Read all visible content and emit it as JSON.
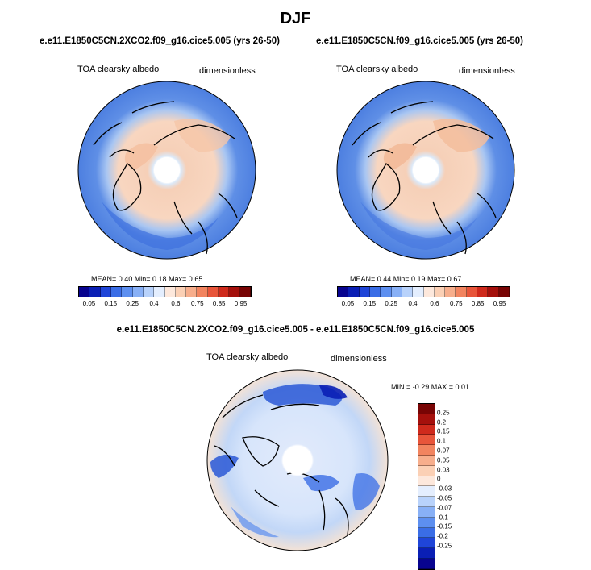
{
  "season_title": "DJF",
  "panels": [
    {
      "case": "e.e11.E1850C5CN.2XCO2.f09_g16.cice5.005 (yrs 26-50)",
      "variable": "TOA clearsky albedo",
      "units": "dimensionless",
      "stats": "MEAN=  0.40  Min=   0.18  Max=  0.65"
    },
    {
      "case": "e.e11.E1850C5CN.f09_g16.cice5.005 (yrs 26-50)",
      "variable": "TOA clearsky albedo",
      "units": "dimensionless",
      "stats": "MEAN=  0.44  Min=   0.19  Max=  0.67"
    }
  ],
  "diff_panel": {
    "title": "e.e11.E1850C5CN.2XCO2.f09_g16.cice5.005 - e.e11.E1850C5CN.f09_g16.cice5.005",
    "variable": "TOA clearsky albedo",
    "units": "dimensionless",
    "minmax": "MIN =  -0.29 MAX =    0.01"
  },
  "colorbar_abs": {
    "colors": [
      "#08048f",
      "#0a1fb5",
      "#1f45d8",
      "#3a6de6",
      "#5d8ff0",
      "#88b0f6",
      "#b8d2fb",
      "#e4eefe",
      "#fde8dc",
      "#fbd0b5",
      "#f7ae8c",
      "#f2845f",
      "#e8553a",
      "#cf2a1c",
      "#a5100c",
      "#780404"
    ],
    "ticks": [
      "0.05",
      "0.15",
      "0.25",
      "0.4",
      "0.6",
      "0.75",
      "0.85",
      "0.95"
    ]
  },
  "colorbar_diff": {
    "colors": [
      "#780404",
      "#a5100c",
      "#cf2a1c",
      "#e8553a",
      "#f2845f",
      "#f7ae8c",
      "#fbd0b5",
      "#fde8dc",
      "#e4eefe",
      "#b8d2fb",
      "#88b0f6",
      "#5d8ff0",
      "#3a6de6",
      "#1f45d8",
      "#0a1fb5",
      "#08048f"
    ],
    "ticks": [
      "0.25",
      "0.2",
      "0.15",
      "0.1",
      "0.07",
      "0.05",
      "0.03",
      "0",
      "-0.03",
      "-0.05",
      "-0.07",
      "-0.1",
      "-0.15",
      "-0.2",
      "-0.25"
    ]
  }
}
